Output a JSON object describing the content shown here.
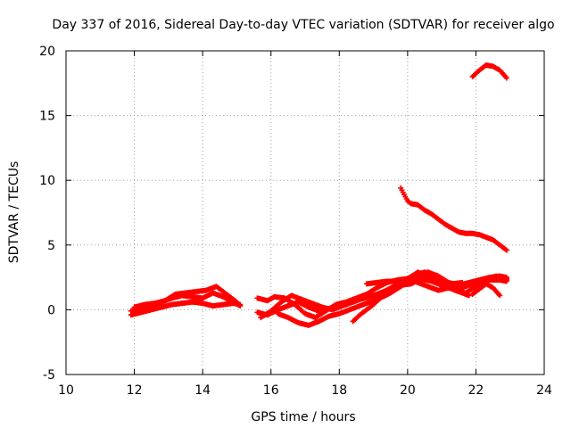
{
  "chart_data": {
    "type": "scatter",
    "title": "Day 337 of 2016, Sidereal Day-to-day VTEC variation (SDTVAR) for receiver algo",
    "xlabel": "GPS time / hours",
    "ylabel": "SDTVAR / TECUs",
    "xlim": [
      10,
      24
    ],
    "ylim": [
      -5,
      20
    ],
    "xticks": [
      "10",
      "12",
      "14",
      "16",
      "18",
      "20",
      "22",
      "24"
    ],
    "yticks": [
      "-5",
      "0",
      "5",
      "10",
      "15",
      "20"
    ],
    "grid": true,
    "marker": "plus",
    "series": [
      {
        "name": "SDTVAR",
        "color": "#ff0000",
        "segments": [
          [
            [
              11.9,
              -0.1
            ],
            [
              12.2,
              0.1
            ],
            [
              12.5,
              0.3
            ],
            [
              12.8,
              0.6
            ],
            [
              13.1,
              0.9
            ],
            [
              13.4,
              1.1
            ],
            [
              13.7,
              1.0
            ],
            [
              14.0,
              0.9
            ],
            [
              14.3,
              1.3
            ],
            [
              14.6,
              1.0
            ],
            [
              14.9,
              0.6
            ],
            [
              15.1,
              0.3
            ]
          ],
          [
            [
              11.9,
              -0.4
            ],
            [
              12.2,
              -0.2
            ],
            [
              12.5,
              0.0
            ],
            [
              12.8,
              0.2
            ],
            [
              13.1,
              0.4
            ],
            [
              13.4,
              0.5
            ],
            [
              13.7,
              0.6
            ],
            [
              14.0,
              0.5
            ],
            [
              14.3,
              0.3
            ],
            [
              14.6,
              0.4
            ],
            [
              14.9,
              0.5
            ],
            [
              15.1,
              0.4
            ]
          ],
          [
            [
              12.0,
              0.2
            ],
            [
              12.3,
              0.4
            ],
            [
              12.6,
              0.5
            ],
            [
              12.9,
              0.7
            ],
            [
              13.2,
              1.2
            ],
            [
              13.5,
              1.3
            ],
            [
              13.8,
              1.4
            ],
            [
              14.1,
              1.5
            ],
            [
              14.4,
              1.8
            ],
            [
              14.7,
              1.2
            ],
            [
              15.0,
              0.6
            ]
          ],
          [
            [
              15.6,
              0.9
            ],
            [
              15.9,
              0.7
            ],
            [
              16.1,
              1.0
            ],
            [
              16.4,
              0.9
            ],
            [
              16.7,
              0.4
            ],
            [
              17.0,
              -0.3
            ],
            [
              17.3,
              -0.6
            ],
            [
              17.6,
              -0.1
            ],
            [
              17.9,
              0.4
            ],
            [
              18.2,
              0.6
            ],
            [
              18.5,
              0.9
            ],
            [
              18.8,
              1.2
            ],
            [
              19.1,
              1.7
            ],
            [
              19.4,
              2.1
            ],
            [
              19.7,
              2.3
            ],
            [
              20.0,
              2.4
            ],
            [
              20.3,
              2.1
            ],
            [
              20.6,
              1.8
            ],
            [
              20.9,
              1.5
            ],
            [
              21.2,
              1.7
            ],
            [
              21.5,
              1.8
            ],
            [
              21.8,
              2.0
            ],
            [
              22.1,
              2.1
            ],
            [
              22.4,
              2.3
            ],
            [
              22.7,
              2.3
            ],
            [
              22.9,
              2.2
            ]
          ],
          [
            [
              15.6,
              -0.2
            ],
            [
              15.9,
              -0.4
            ],
            [
              16.2,
              0.0
            ],
            [
              16.5,
              0.3
            ],
            [
              16.8,
              0.6
            ],
            [
              17.1,
              0.2
            ],
            [
              17.4,
              -0.1
            ],
            [
              17.7,
              0.1
            ],
            [
              18.0,
              0.3
            ],
            [
              18.3,
              0.5
            ],
            [
              18.6,
              0.8
            ],
            [
              18.9,
              1.0
            ],
            [
              19.2,
              1.3
            ],
            [
              19.5,
              1.6
            ],
            [
              19.8,
              1.9
            ],
            [
              20.1,
              2.0
            ],
            [
              20.4,
              2.4
            ],
            [
              20.7,
              2.2
            ],
            [
              21.0,
              1.9
            ],
            [
              21.3,
              1.6
            ],
            [
              21.6,
              1.3
            ],
            [
              21.8,
              1.1
            ]
          ],
          [
            [
              15.7,
              -0.6
            ],
            [
              16.0,
              -0.1
            ],
            [
              16.3,
              0.6
            ],
            [
              16.6,
              1.1
            ],
            [
              16.9,
              0.8
            ],
            [
              17.2,
              0.5
            ],
            [
              17.5,
              0.2
            ],
            [
              17.8,
              0.0
            ],
            [
              18.1,
              0.3
            ],
            [
              18.4,
              0.6
            ],
            [
              18.7,
              0.9
            ],
            [
              19.0,
              1.1
            ],
            [
              19.3,
              1.4
            ],
            [
              19.6,
              1.8
            ],
            [
              19.9,
              2.2
            ],
            [
              20.2,
              2.6
            ],
            [
              20.5,
              2.9
            ],
            [
              20.8,
              2.4
            ],
            [
              21.1,
              1.9
            ],
            [
              21.4,
              1.5
            ],
            [
              21.7,
              1.3
            ],
            [
              22.0,
              1.8
            ],
            [
              22.3,
              2.4
            ],
            [
              22.6,
              2.6
            ],
            [
              22.9,
              2.4
            ]
          ],
          [
            [
              16.2,
              -0.3
            ],
            [
              16.5,
              -0.6
            ],
            [
              16.8,
              -1.0
            ],
            [
              17.1,
              -1.2
            ],
            [
              17.4,
              -0.9
            ],
            [
              17.7,
              -0.5
            ],
            [
              18.0,
              -0.3
            ],
            [
              18.3,
              0.0
            ],
            [
              18.6,
              0.3
            ],
            [
              18.9,
              0.6
            ],
            [
              19.2,
              0.9
            ],
            [
              19.5,
              1.3
            ],
            [
              19.8,
              1.8
            ],
            [
              20.1,
              2.3
            ],
            [
              20.4,
              2.7
            ],
            [
              20.7,
              2.5
            ],
            [
              21.0,
              2.2
            ],
            [
              21.3,
              2.0
            ],
            [
              21.6,
              2.1
            ]
          ],
          [
            [
              18.4,
              -0.9
            ],
            [
              18.6,
              -0.4
            ],
            [
              18.8,
              0.0
            ],
            [
              19.0,
              0.4
            ],
            [
              19.2,
              0.9
            ],
            [
              19.4,
              1.5
            ],
            [
              19.7,
              2.0
            ],
            [
              20.0,
              2.4
            ],
            [
              20.3,
              2.8
            ],
            [
              20.6,
              2.9
            ],
            [
              20.9,
              2.6
            ],
            [
              21.2,
              2.1
            ],
            [
              21.5,
              1.9
            ],
            [
              21.8,
              2.1
            ],
            [
              22.1,
              2.3
            ],
            [
              22.4,
              2.5
            ],
            [
              22.7,
              2.4
            ],
            [
              22.9,
              2.3
            ]
          ],
          [
            [
              21.9,
              1.2
            ],
            [
              22.1,
              1.6
            ],
            [
              22.3,
              2.0
            ],
            [
              22.5,
              1.7
            ],
            [
              22.7,
              1.1
            ]
          ],
          [
            [
              18.8,
              2.0
            ],
            [
              19.1,
              2.1
            ],
            [
              19.4,
              2.2
            ],
            [
              19.7,
              2.2
            ],
            [
              20.0,
              2.4
            ],
            [
              20.3,
              2.9
            ],
            [
              20.6,
              2.6
            ],
            [
              20.9,
              2.3
            ],
            [
              21.2,
              1.7
            ],
            [
              21.5,
              1.6
            ],
            [
              21.8,
              1.9
            ],
            [
              22.1,
              2.2
            ],
            [
              22.4,
              2.5
            ],
            [
              22.7,
              2.6
            ],
            [
              22.9,
              2.5
            ]
          ],
          [
            [
              19.8,
              9.4
            ],
            [
              19.9,
              8.9
            ],
            [
              20.0,
              8.4
            ],
            [
              20.1,
              8.2
            ],
            [
              20.3,
              8.1
            ],
            [
              20.5,
              7.7
            ],
            [
              20.7,
              7.4
            ],
            [
              20.9,
              7.0
            ],
            [
              21.1,
              6.6
            ],
            [
              21.3,
              6.3
            ],
            [
              21.5,
              6.0
            ],
            [
              21.7,
              5.9
            ],
            [
              21.9,
              5.9
            ],
            [
              22.1,
              5.8
            ],
            [
              22.3,
              5.6
            ],
            [
              22.5,
              5.4
            ],
            [
              22.7,
              5.0
            ],
            [
              22.9,
              4.6
            ]
          ],
          [
            [
              21.9,
              18.0
            ],
            [
              22.1,
              18.5
            ],
            [
              22.3,
              18.9
            ],
            [
              22.5,
              18.8
            ],
            [
              22.7,
              18.5
            ],
            [
              22.9,
              17.9
            ]
          ]
        ]
      }
    ]
  }
}
